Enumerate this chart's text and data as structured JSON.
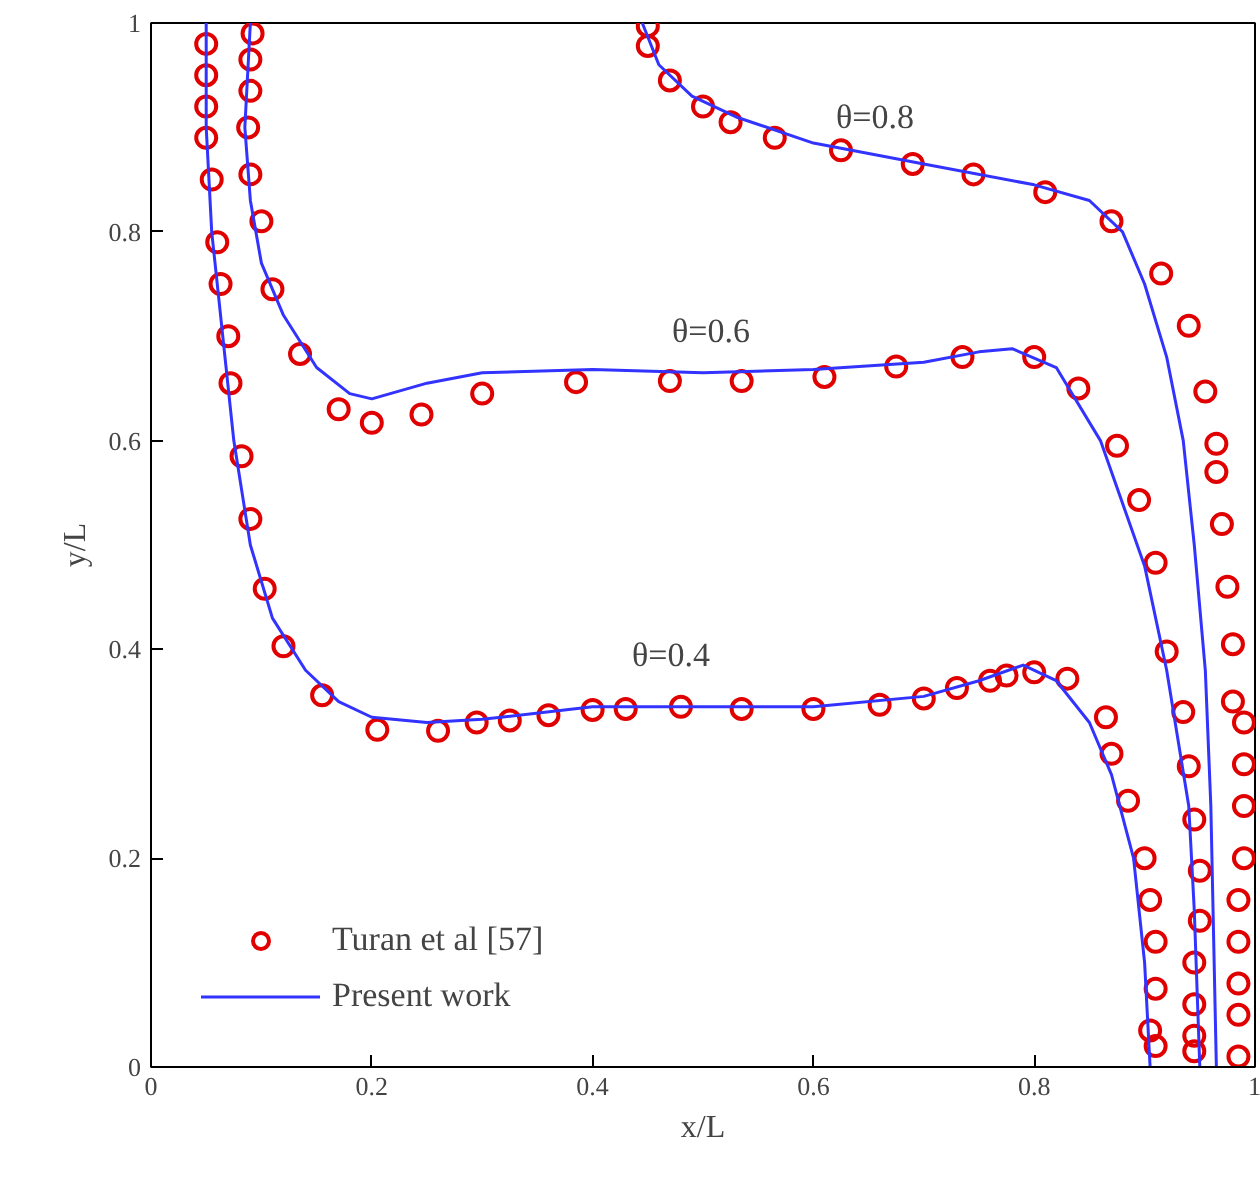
{
  "chart_data": {
    "type": "line",
    "xlabel": "x/L",
    "ylabel": "y/L",
    "xlim": [
      0,
      1
    ],
    "ylim": [
      0,
      1
    ],
    "xticks": [
      0,
      0.2,
      0.4,
      0.6,
      0.8,
      1
    ],
    "yticks": [
      0,
      0.2,
      0.4,
      0.6,
      0.8,
      1
    ],
    "grid": false,
    "legend": "bottom left",
    "series": [
      {
        "name": "Turan et al [57]",
        "type": "scatter",
        "marker": "circle",
        "color": "#e00000",
        "x": [
          0.05,
          0.05,
          0.05,
          0.05,
          0.055,
          0.06,
          0.063,
          0.07,
          0.072,
          0.082,
          0.09,
          0.103,
          0.12,
          0.155,
          0.205,
          0.26,
          0.295,
          0.325,
          0.36,
          0.4,
          0.43,
          0.48,
          0.535,
          0.6,
          0.66,
          0.7,
          0.73,
          0.76,
          0.775,
          0.8,
          0.83,
          0.865,
          0.87,
          0.885,
          0.9,
          0.905,
          0.91,
          0.91,
          0.905,
          0.91,
          0.092,
          0.09,
          0.09,
          0.088,
          0.09,
          0.1,
          0.11,
          0.135,
          0.17,
          0.2,
          0.245,
          0.3,
          0.385,
          0.47,
          0.535,
          0.61,
          0.675,
          0.735,
          0.8,
          0.84,
          0.875,
          0.895,
          0.91,
          0.92,
          0.935,
          0.94,
          0.945,
          0.95,
          0.95,
          0.945,
          0.945,
          0.945,
          0.945,
          0.45,
          0.45,
          0.47,
          0.5,
          0.525,
          0.565,
          0.625,
          0.69,
          0.745,
          0.81,
          0.87,
          0.915,
          0.94,
          0.955,
          0.965,
          0.965,
          0.97,
          0.975,
          0.98,
          0.98,
          0.99,
          0.99,
          0.99,
          0.99,
          0.985,
          0.985,
          0.985,
          0.985,
          0.985
        ],
        "values": [
          0.98,
          0.95,
          0.92,
          0.89,
          0.85,
          0.79,
          0.75,
          0.7,
          0.655,
          0.585,
          0.525,
          0.458,
          0.403,
          0.356,
          0.323,
          0.322,
          0.33,
          0.332,
          0.337,
          0.342,
          0.343,
          0.345,
          0.343,
          0.343,
          0.347,
          0.353,
          0.363,
          0.37,
          0.375,
          0.378,
          0.372,
          0.335,
          0.3,
          0.255,
          0.2,
          0.16,
          0.12,
          0.075,
          0.035,
          0.02,
          0.99,
          0.965,
          0.935,
          0.9,
          0.855,
          0.81,
          0.745,
          0.683,
          0.63,
          0.617,
          0.625,
          0.645,
          0.656,
          0.657,
          0.657,
          0.661,
          0.671,
          0.68,
          0.68,
          0.65,
          0.595,
          0.543,
          0.483,
          0.398,
          0.34,
          0.288,
          0.237,
          0.188,
          0.14,
          0.1,
          0.06,
          0.03,
          0.015,
          0.997,
          0.978,
          0.945,
          0.92,
          0.905,
          0.89,
          0.878,
          0.865,
          0.855,
          0.838,
          0.81,
          0.76,
          0.71,
          0.647,
          0.597,
          0.57,
          0.52,
          0.46,
          0.405,
          0.35,
          0.33,
          0.29,
          0.25,
          0.2,
          0.16,
          0.12,
          0.08,
          0.05,
          0.01
        ]
      },
      {
        "name": "Present work",
        "color": "#3333ff",
        "x": [
          0.05,
          0.05,
          0.055,
          0.065,
          0.075,
          0.09,
          0.11,
          0.14,
          0.17,
          0.2,
          0.25,
          0.3,
          0.4,
          0.5,
          0.6,
          0.7,
          0.75,
          0.79,
          0.82,
          0.85,
          0.87,
          0.89,
          0.9,
          0.905
        ],
        "values": [
          1.0,
          0.9,
          0.8,
          0.7,
          0.6,
          0.5,
          0.43,
          0.38,
          0.35,
          0.335,
          0.33,
          0.333,
          0.345,
          0.345,
          0.345,
          0.355,
          0.37,
          0.385,
          0.37,
          0.33,
          0.28,
          0.2,
          0.1,
          0.0
        ]
      },
      {
        "color": "#3333ff",
        "x": [
          0.09,
          0.085,
          0.09,
          0.1,
          0.12,
          0.15,
          0.18,
          0.2,
          0.25,
          0.3,
          0.4,
          0.5,
          0.6,
          0.7,
          0.75,
          0.78,
          0.82,
          0.86,
          0.9,
          0.92,
          0.94,
          0.945,
          0.95
        ],
        "values": [
          1.0,
          0.9,
          0.83,
          0.77,
          0.72,
          0.67,
          0.645,
          0.64,
          0.655,
          0.665,
          0.668,
          0.665,
          0.668,
          0.675,
          0.685,
          0.688,
          0.67,
          0.6,
          0.48,
          0.38,
          0.25,
          0.15,
          0.0
        ]
      },
      {
        "color": "#3333ff",
        "x": [
          0.445,
          0.46,
          0.49,
          0.53,
          0.6,
          0.7,
          0.8,
          0.85,
          0.88,
          0.9,
          0.92,
          0.935,
          0.945,
          0.955,
          0.96,
          0.963,
          0.965
        ],
        "values": [
          1.0,
          0.96,
          0.93,
          0.91,
          0.885,
          0.865,
          0.845,
          0.83,
          0.8,
          0.75,
          0.68,
          0.6,
          0.5,
          0.38,
          0.25,
          0.1,
          0.0
        ]
      }
    ],
    "annotations": [
      "θ=0.8",
      "θ=0.6",
      "θ=0.4"
    ]
  }
}
